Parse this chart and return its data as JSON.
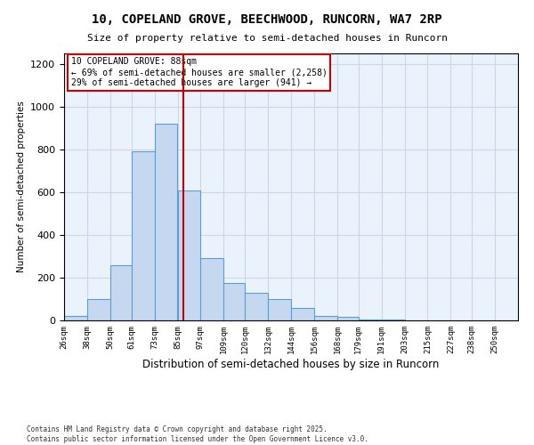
{
  "title_line1": "10, COPELAND GROVE, BEECHWOOD, RUNCORN, WA7 2RP",
  "title_line2": "Size of property relative to semi-detached houses in Runcorn",
  "xlabel": "Distribution of semi-detached houses by size in Runcorn",
  "ylabel": "Number of semi-detached properties",
  "bar_edges": [
    26,
    38,
    50,
    61,
    73,
    85,
    97,
    109,
    120,
    132,
    144,
    156,
    168,
    179,
    191,
    203,
    215,
    227,
    238,
    250,
    262
  ],
  "bar_heights": [
    20,
    100,
    260,
    790,
    920,
    610,
    290,
    175,
    130,
    100,
    60,
    20,
    15,
    5,
    5,
    2,
    2,
    0,
    0,
    2
  ],
  "bar_color": "#c5d8f0",
  "bar_edge_color": "#5a9fd4",
  "grid_color": "#c8d8e8",
  "background_color": "#eaf2fb",
  "vline_x": 88,
  "vline_color": "#cc0000",
  "annotation_title": "10 COPELAND GROVE: 88sqm",
  "annotation_line2": "← 69% of semi-detached houses are smaller (2,258)",
  "annotation_line3": "29% of semi-detached houses are larger (941) →",
  "annotation_box_color": "#ffffff",
  "annotation_box_edge_color": "#cc0000",
  "ylim": [
    0,
    1250
  ],
  "yticks": [
    0,
    200,
    400,
    600,
    800,
    1000,
    1200
  ],
  "footnote1": "Contains HM Land Registry data © Crown copyright and database right 2025.",
  "footnote2": "Contains public sector information licensed under the Open Government Licence v3.0."
}
